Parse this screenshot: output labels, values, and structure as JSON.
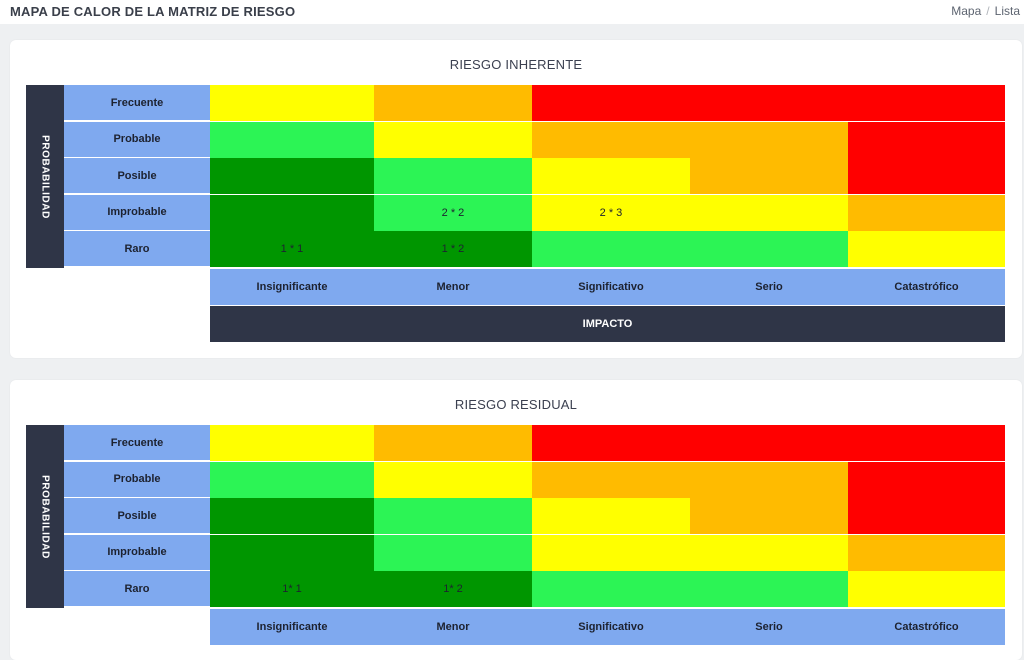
{
  "header": {
    "title": "MAPA DE CALOR DE LA MATRIZ DE RIESGO",
    "breadcrumb": [
      "Mapa",
      "Lista"
    ]
  },
  "axis": {
    "probability": "PROBABILIDAD",
    "impact": "IMPACTO",
    "probability_levels": [
      "Frecuente",
      "Probable",
      "Posible",
      "Improbable",
      "Raro"
    ],
    "impact_levels": [
      "Insignificante",
      "Menor",
      "Significativo",
      "Serio",
      "Catastrófico"
    ]
  },
  "colors": {
    "yellow": "#ffff00",
    "orange": "#ffbb00",
    "red": "#ff0000",
    "light_green": "#2cf455",
    "dark_green": "#009600",
    "axis_blue": "#7fa9ef",
    "axis_dark": "#2f3547"
  },
  "inherent": {
    "title": "RIESGO INHERENTE",
    "cells": {
      "improbable_menor": "2 * 2",
      "improbable_significativo": "2 * 3",
      "raro_insignificante": "1 * 1",
      "raro_menor": "1 * 2"
    }
  },
  "residual": {
    "title": "RIESGO RESIDUAL",
    "cells": {
      "raro_insignificante": "1* 1",
      "raro_menor": "1* 2"
    }
  }
}
